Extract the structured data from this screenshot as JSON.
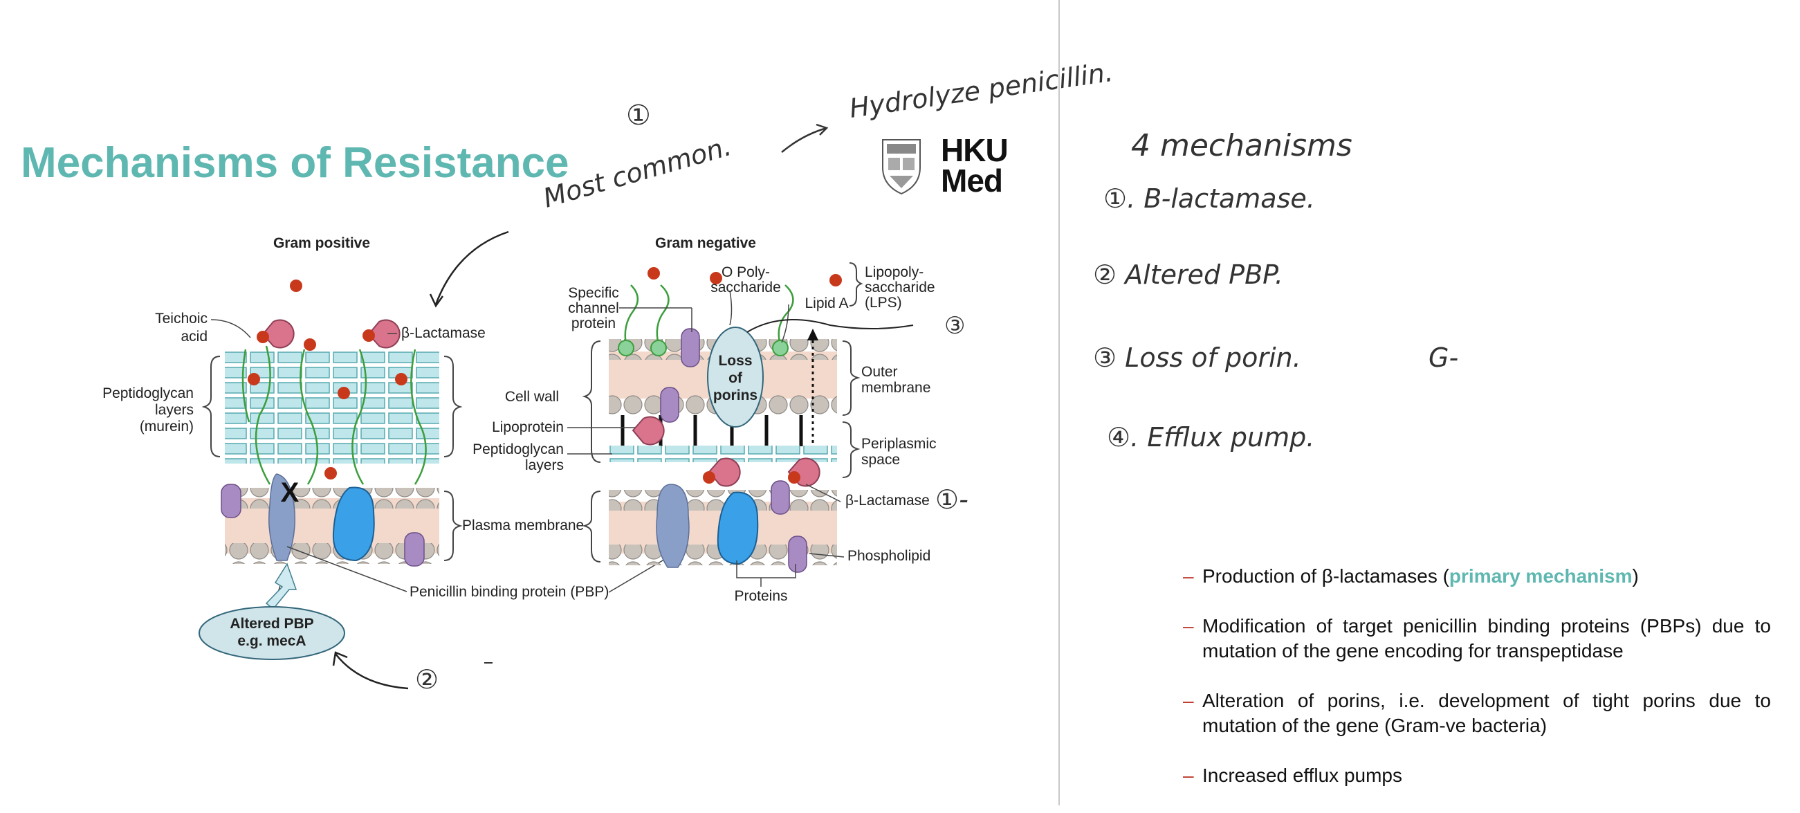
{
  "slide": {
    "title": "Mechanisms of Resistance",
    "logo": {
      "line1": "HKU",
      "line2": "Med"
    }
  },
  "diagram": {
    "gram_positive": {
      "heading": "Gram positive",
      "labels": {
        "teichoic": [
          "Teichoic",
          "acid"
        ],
        "beta_lactamase": "β-Lactamase",
        "peptidoglycan": [
          "Peptidoglycan",
          "layers",
          "(murein)"
        ],
        "plasma_membrane": "Plasma membrane",
        "pbp": "Penicillin binding protein (PBP)",
        "altered_pbp": [
          "Altered PBP",
          "e.g. mecA"
        ],
        "x_mark": "X"
      }
    },
    "gram_negative": {
      "heading": "Gram negative",
      "labels": {
        "channel_protein": [
          "Specific",
          "channel",
          "protein"
        ],
        "o_poly": [
          "O Poly-",
          "saccharide"
        ],
        "lipid_a": "Lipid A",
        "lps": [
          "Lipopoly-",
          "saccharide",
          "(LPS)"
        ],
        "loss_of_porins": [
          "Loss",
          "of",
          "porins"
        ],
        "cell_wall": "Cell wall",
        "outer_membrane": [
          "Outer",
          "membrane"
        ],
        "lipoprotein": "Lipoprotein",
        "peptidoglycan": [
          "Peptidoglycan",
          "layers"
        ],
        "periplasmic": [
          "Periplasmic",
          "space"
        ],
        "beta_lactamase": "β-Lactamase",
        "phospholipid": "Phospholipid",
        "proteins": "Proteins"
      }
    }
  },
  "bullets": [
    {
      "before": "Production of β-lactamases (",
      "highlight": "primary mechanism",
      "after": ")"
    },
    {
      "before": "Modification of target penicillin binding proteins (PBPs) due to mutation of the gene encoding for transpeptidase",
      "highlight": "",
      "after": ""
    },
    {
      "before": "Alteration of porins, i.e. development of tight porins due to mutation of the gene (Gram-ve bacteria)",
      "highlight": "",
      "after": ""
    },
    {
      "before": "Increased efflux pumps",
      "highlight": "",
      "after": ""
    }
  ],
  "handwriting": {
    "heading": "4 mechanisms",
    "items": [
      "①. B-lactamase.",
      "② Altered PBP.",
      "③ Loss of porin.",
      "④. Efflux pump."
    ],
    "gram_neg_note": "G-",
    "top_note_1": "①",
    "top_note_2": "Most common.",
    "top_note_3": "Hydrolyze penicillin.",
    "marker_porin": "③",
    "marker_lactamase": "①-",
    "marker_pbp": "②"
  },
  "colors": {
    "accent": "#5eb7b0",
    "bullet_dash": "#c0392b",
    "membrane": "#f2d9cc",
    "lipid_head": "#c8c2bb",
    "peptidoglycan": "#bfe6ea",
    "protein_blue": "#3aa0e8",
    "protein_purple": "#a98bc4",
    "enzyme_pink": "#d9748c",
    "red_dot": "#c8391c"
  }
}
